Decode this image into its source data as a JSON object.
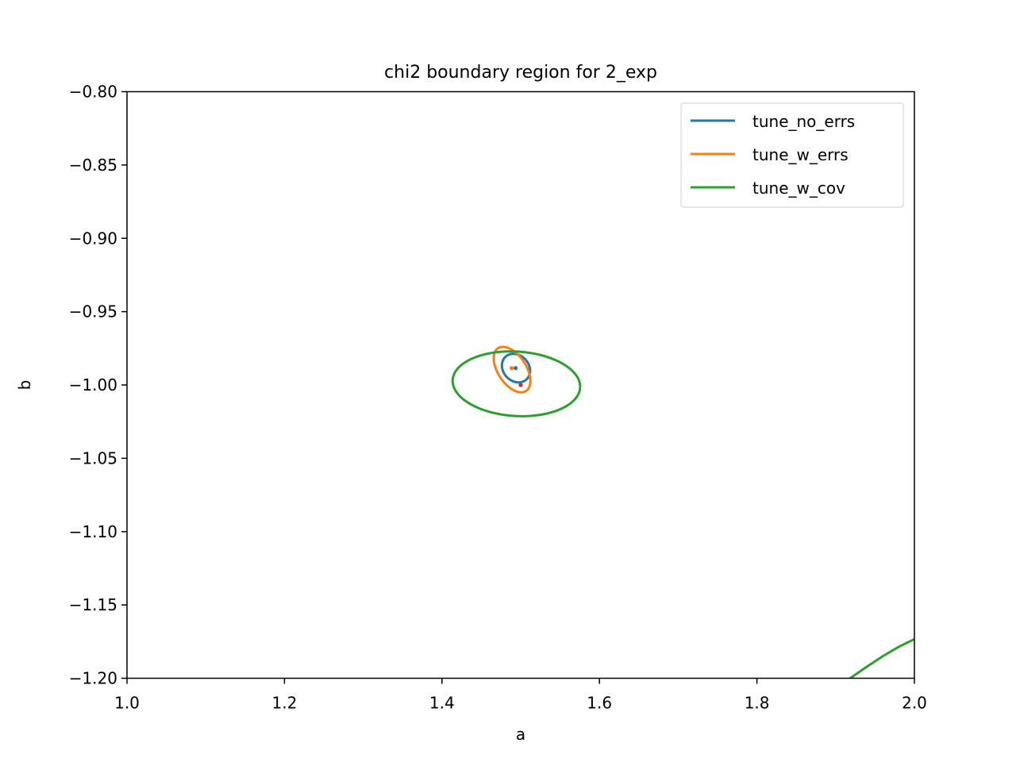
{
  "chart_data": {
    "type": "line",
    "title": "chi2 boundary region for 2_exp",
    "xlabel": "a",
    "ylabel": "b",
    "xlim": [
      1.0,
      2.0
    ],
    "ylim": [
      -1.2,
      -0.8
    ],
    "xticks": [
      "1.0",
      "1.2",
      "1.4",
      "1.6",
      "1.8",
      "2.0"
    ],
    "yticks": [
      "−0.80",
      "−0.85",
      "−0.90",
      "−0.95",
      "−1.00",
      "−1.05",
      "−1.10",
      "−1.15",
      "−1.20"
    ],
    "grid": false,
    "legend_position": "top-right",
    "series": [
      {
        "name": "tune_no_errs",
        "color": "#1f77b4",
        "contours": [
          {
            "type": "ellipse",
            "center": [
              1.494,
              -0.9885
            ],
            "rx": 0.018,
            "ry": 0.0095,
            "rotation_deg": -8
          }
        ],
        "best_fit": [
          1.4935,
          -0.9885
        ]
      },
      {
        "name": "tune_w_errs",
        "color": "#ff7f0e",
        "contours": [
          {
            "type": "ellipse",
            "center": [
              1.489,
              -0.9895
            ],
            "rx": 0.025,
            "ry": 0.0125,
            "rotation_deg": -25
          }
        ],
        "best_fit": [
          1.4885,
          -0.9885
        ]
      },
      {
        "name": "tune_w_cov",
        "color": "#2ca02c",
        "contours": [
          {
            "type": "ellipse",
            "center": [
              1.4945,
              -0.9992
            ],
            "rx": 0.081,
            "ry": 0.022,
            "rotation_deg": -1.5
          },
          {
            "type": "curve",
            "points": [
              [
                1.9185,
                -1.2
              ],
              [
                1.935,
                -1.1938
              ],
              [
                1.96,
                -1.1849
              ],
              [
                1.98,
                -1.1786
              ],
              [
                2.0,
                -1.1733
              ]
            ]
          }
        ]
      }
    ],
    "true_point": {
      "x": 1.5,
      "y": -1.0,
      "color": "#d62728"
    }
  }
}
